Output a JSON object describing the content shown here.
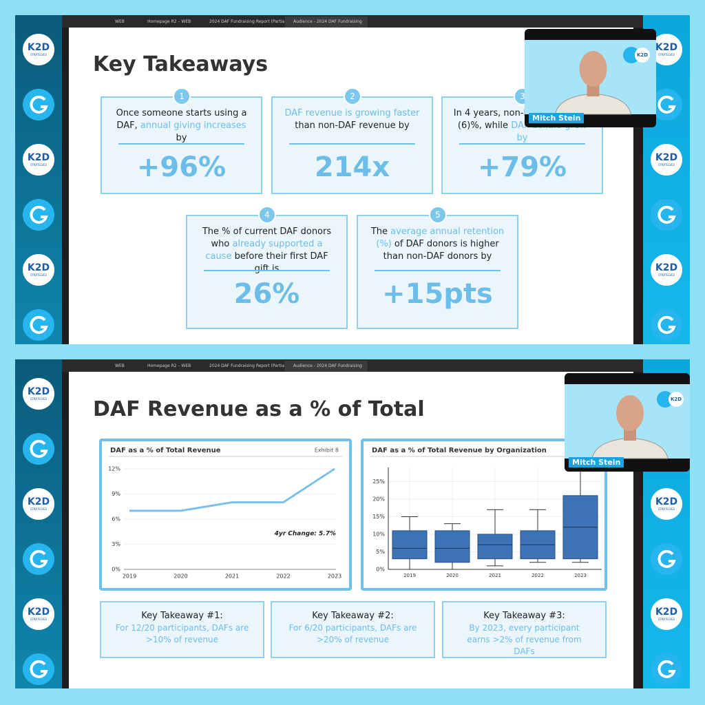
{
  "browser": {
    "tabs": [
      "WEB",
      "Homepage R2 – WEB",
      "2024 DAF Fundraising Report (Partia",
      "Audience - 2024 DAF Fundraising"
    ]
  },
  "sidebar": {
    "logo_text": "K2D",
    "logo_subtext": "STRATEGIES"
  },
  "video": {
    "participant": "Mitch Stein",
    "logo_text": "K2D"
  },
  "slide_1": {
    "title": "Key Takeaways",
    "cards": [
      {
        "number": "1",
        "parts": [
          {
            "text": "Once someone starts using a DAF, ",
            "highlight": false
          },
          {
            "text": "annual giving increases",
            "highlight": true
          },
          {
            "text": " by",
            "highlight": false
          }
        ],
        "value": "+96%"
      },
      {
        "number": "2",
        "parts": [
          {
            "text": "DAF revenue is growing faster",
            "highlight": true
          },
          {
            "text": " than non-DAF revenue by",
            "highlight": false
          }
        ],
        "value": "214x"
      },
      {
        "number": "3",
        "parts": [
          {
            "text": "In 4 years, non-DAF dollars fell (6)%, while ",
            "highlight": false
          },
          {
            "text": "DAF dollars grew by",
            "highlight": true
          }
        ],
        "value": "+79%"
      },
      {
        "number": "4",
        "parts": [
          {
            "text": "The % of current DAF donors who ",
            "highlight": false
          },
          {
            "text": "already supported a cause",
            "highlight": true
          },
          {
            "text": " before their first DAF gift is",
            "highlight": false
          }
        ],
        "value": "26%"
      },
      {
        "number": "5",
        "parts": [
          {
            "text": "The ",
            "highlight": false
          },
          {
            "text": "average annual retention (%)",
            "highlight": true
          },
          {
            "text": " of DAF donors is higher than non-DAF donors by",
            "highlight": false
          }
        ],
        "value": "+15pts"
      }
    ]
  },
  "slide_2": {
    "title": "DAF Revenue as a % of Total",
    "line_chart": {
      "type": "line",
      "title": "DAF as a % of Total Revenue",
      "exhibit": "Exhibit 8",
      "categories": [
        "2019",
        "2020",
        "2021",
        "2022",
        "2023"
      ],
      "values": [
        7,
        7,
        8,
        8,
        12
      ],
      "color": "#7cc0ea",
      "ylim": [
        0,
        12
      ],
      "yticks": [
        {
          "value": 0,
          "label": "0%"
        },
        {
          "value": 3,
          "label": "3%"
        },
        {
          "value": 6,
          "label": "6%"
        },
        {
          "value": 9,
          "label": "9%"
        },
        {
          "value": 12,
          "label": "12%"
        }
      ],
      "grid": true,
      "annotation": "4yr Change: 5.7%"
    },
    "box_chart": {
      "type": "box",
      "title": "DAF as a % of Total Revenue by Organization",
      "categories": [
        "2019",
        "2020",
        "2021",
        "2022",
        "2023"
      ],
      "whisker_low": [
        0,
        0,
        1,
        2,
        2
      ],
      "q1": [
        3,
        2,
        3,
        3,
        3
      ],
      "median": [
        6,
        6,
        7,
        7,
        12
      ],
      "q3": [
        11,
        11,
        10,
        11,
        21
      ],
      "whisker_high": [
        15,
        13,
        17,
        17,
        28
      ],
      "color": "#3d73b5",
      "ylim": [
        0,
        29
      ],
      "yticks": [
        {
          "value": 0,
          "label": "0%"
        },
        {
          "value": 5,
          "label": "5%"
        },
        {
          "value": 10,
          "label": "10%"
        },
        {
          "value": 15,
          "label": "15%"
        },
        {
          "value": 20,
          "label": "20%"
        },
        {
          "value": 25,
          "label": "25%"
        }
      ],
      "grid": true
    },
    "takeaways": [
      {
        "heading": "Key Takeaway #1:",
        "text": "For 12/20 participants, DAFs are >10% of revenue"
      },
      {
        "heading": "Key Takeaway #2:",
        "text": "For 6/20 participants, DAFs are >20% of revenue"
      },
      {
        "heading": "Key Takeaway #3:",
        "text": "By 2023, every participant earns >2% of revenue from DAFs"
      }
    ]
  }
}
